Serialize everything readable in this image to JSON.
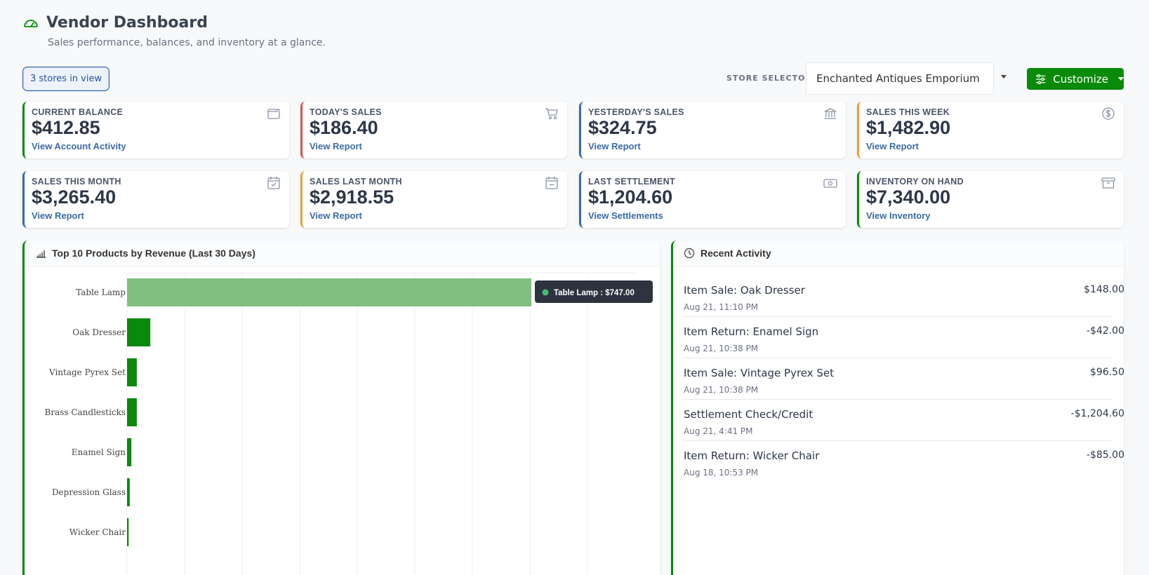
{
  "header": {
    "title": "Vendor Dashboard",
    "subtitle": "Sales performance, balances, and inventory at a glance.",
    "icon": "speedometer-icon"
  },
  "toolbar": {
    "stores_in_view": "3 stores in view",
    "store_selector_label": "STORE SELECTOR",
    "store_selected": "Enchanted Antiques Emporium",
    "customize_label": "Customize"
  },
  "cards": [
    {
      "label": "CURRENT BALANCE",
      "value": "$412.85",
      "link": "View Account Activity",
      "icon": "wallet-icon",
      "accent": "#0a8a0a"
    },
    {
      "label": "TODAY'S SALES",
      "value": "$186.40",
      "link": "View Report",
      "icon": "cart-icon",
      "accent": "#d9534f"
    },
    {
      "label": "YESTERDAY'S SALES",
      "value": "$324.75",
      "link": "View Report",
      "icon": "bank-icon",
      "accent": "#3b6aa8"
    },
    {
      "label": "SALES THIS WEEK",
      "value": "$1,482.90",
      "link": "View Report",
      "icon": "dollar-circle-icon",
      "accent": "#e8a33a"
    },
    {
      "label": "SALES THIS MONTH",
      "value": "$3,265.40",
      "link": "View Report",
      "icon": "calendar-check-icon",
      "accent": "#3b6aa8"
    },
    {
      "label": "SALES LAST MONTH",
      "value": "$2,918.55",
      "link": "View Report",
      "icon": "calendar-minus-icon",
      "accent": "#e8a33a"
    },
    {
      "label": "LAST SETTLEMENT",
      "value": "$1,204.60",
      "link": "View Settlements",
      "icon": "cash-icon",
      "accent": "#3b6aa8"
    },
    {
      "label": "INVENTORY ON HAND",
      "value": "$7,340.00",
      "link": "View Inventory",
      "icon": "archive-box-icon",
      "accent": "#0a8a0a"
    }
  ],
  "chart_panel": {
    "title": "Top 10 Products by Revenue (Last 30 Days)",
    "icon": "bar-chart-icon",
    "tooltip": "Table Lamp : $747.00"
  },
  "chart_data": {
    "type": "bar",
    "orientation": "horizontal",
    "categories": [
      "Table Lamp",
      "Oak Dresser",
      "Vintage Pyrex Set",
      "Brass Candlesticks",
      "Enamel Sign",
      "Depression Glass",
      "Wicker Chair"
    ],
    "values": [
      747,
      43,
      18,
      18,
      8,
      5,
      3
    ],
    "highlight": "Table Lamp",
    "bar_color": "#0a8a0a",
    "highlight_color": "#7fbf7f",
    "xlim": [
      0,
      900
    ],
    "grid": true
  },
  "activity_panel": {
    "title": "Recent Activity",
    "icon": "clock-icon",
    "items": [
      {
        "name": "Item Sale: Oak Dresser",
        "time": "Aug 21, 11:10 PM",
        "amount": "$148.00"
      },
      {
        "name": "Item Return: Enamel Sign",
        "time": "Aug 21, 10:38 PM",
        "amount": "-$42.00"
      },
      {
        "name": "Item Sale: Vintage Pyrex Set",
        "time": "Aug 21, 10:38 PM",
        "amount": "$96.50"
      },
      {
        "name": "Settlement Check/Credit",
        "time": "Aug 21, 4:41 PM",
        "amount": "-$1,204.60"
      },
      {
        "name": "Item Return: Wicker Chair",
        "time": "Aug 18, 10:53 PM",
        "amount": "-$85.00"
      }
    ]
  }
}
